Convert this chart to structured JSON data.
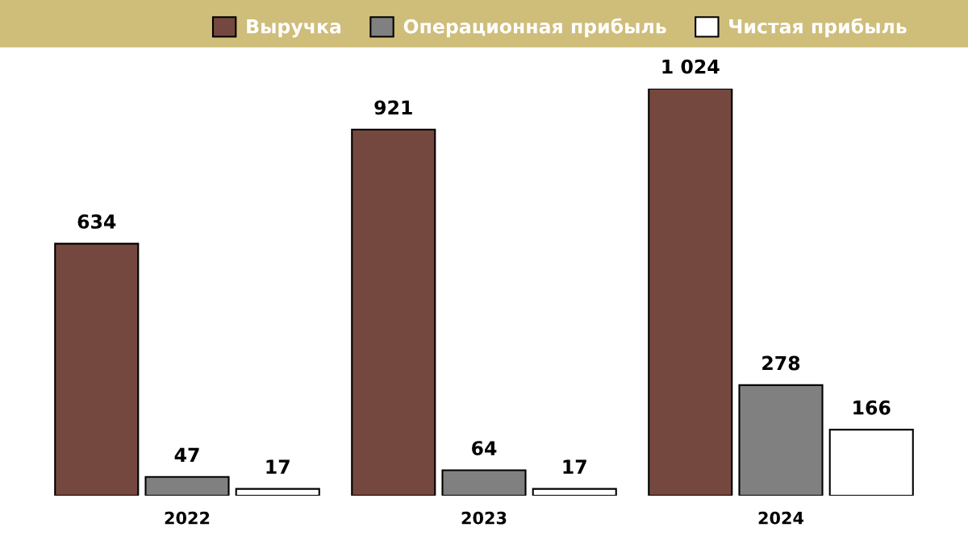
{
  "chart_data": {
    "type": "bar",
    "categories": [
      "2022",
      "2023",
      "2024"
    ],
    "series": [
      {
        "name": "Выручка",
        "color": "#75483f",
        "values": [
          634,
          921,
          1024
        ],
        "value_labels": [
          "634",
          "921",
          "1 024"
        ]
      },
      {
        "name": "Операционная прибыль",
        "color": "#808080",
        "values": [
          47,
          64,
          278
        ],
        "value_labels": [
          "47",
          "64",
          "278"
        ]
      },
      {
        "name": "Чистая прибыль",
        "color": "#ffffff",
        "values": [
          17,
          17,
          166
        ],
        "value_labels": [
          "17",
          "17",
          "166"
        ]
      }
    ],
    "legend": "top",
    "grid": false,
    "tick_labels": "x"
  }
}
